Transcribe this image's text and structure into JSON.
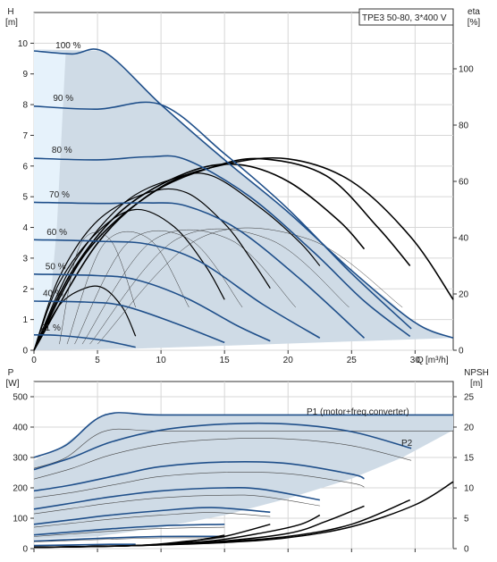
{
  "colors": {
    "region_fill": "#cfdbe6",
    "region_fill_light": "#e6f2fb",
    "curve_blue": "#1f4f8a",
    "eff_curve": "#000000",
    "grid": "#d7d7d7",
    "p2_label": "#2b5aa0"
  },
  "chart_data": [
    {
      "type": "line",
      "panel": "head",
      "title_box": "TPE3 50-80, 3*400 V",
      "ylabel_left": "H",
      "ylabel_left_unit": "[m]",
      "ylabel_right": "eta",
      "ylabel_right_unit": "[%]",
      "xlabel": "Q",
      "xlabel_unit": "[m³/h]",
      "xlim": [
        0,
        33
      ],
      "ylim": [
        0,
        11
      ],
      "eta_lim": [
        0,
        120
      ],
      "x_ticks": [
        "0",
        "5",
        "10",
        "15",
        "20",
        "25",
        "30"
      ],
      "y_ticks": [
        "0",
        "1",
        "2",
        "3",
        "4",
        "5",
        "6",
        "7",
        "8",
        "9",
        "10"
      ],
      "eta_ticks": [
        "0",
        "20",
        "40",
        "60",
        "80",
        "100"
      ],
      "speed_labels": [
        "100 %",
        "90 %",
        "80 %",
        "70 %",
        "60 %",
        "50 %",
        "40 %",
        "21 %"
      ],
      "region_outline": [
        [
          0,
          9.8
        ],
        [
          5.6,
          9.75
        ],
        [
          10,
          8.0
        ],
        [
          15,
          6.2
        ],
        [
          20,
          4.5
        ],
        [
          25,
          2.6
        ],
        [
          28,
          1.6
        ],
        [
          30,
          0.85
        ],
        [
          33,
          0.4
        ],
        [
          8,
          0.05
        ],
        [
          0,
          0
        ]
      ],
      "head_series": [
        {
          "speed": 100,
          "points": [
            [
              0,
              9.75
            ],
            [
              3,
              9.65
            ],
            [
              5.6,
              9.7
            ],
            [
              10,
              8.0
            ],
            [
              15,
              6.2
            ],
            [
              20,
              4.5
            ],
            [
              25,
              2.6
            ],
            [
              30,
              0.9
            ],
            [
              33,
              0.4
            ]
          ]
        },
        {
          "speed": 90,
          "points": [
            [
              0,
              7.95
            ],
            [
              5,
              7.85
            ],
            [
              10,
              8.0
            ],
            [
              15,
              6.4
            ],
            [
              20,
              4.6
            ],
            [
              25,
              2.5
            ],
            [
              29.7,
              0.7
            ]
          ]
        },
        {
          "speed": 80,
          "points": [
            [
              0,
              6.25
            ],
            [
              5,
              6.2
            ],
            [
              9,
              6.3
            ],
            [
              12,
              6.2
            ],
            [
              17,
              5.0
            ],
            [
              22,
              3.2
            ],
            [
              26,
              1.6
            ],
            [
              29.6,
              0.45
            ]
          ]
        },
        {
          "speed": 70,
          "points": [
            [
              0,
              4.82
            ],
            [
              5,
              4.78
            ],
            [
              9,
              4.8
            ],
            [
              12,
              4.7
            ],
            [
              16,
              3.95
            ],
            [
              21,
              2.3
            ],
            [
              26,
              0.4
            ]
          ]
        },
        {
          "speed": 60,
          "points": [
            [
              0,
              3.6
            ],
            [
              5,
              3.55
            ],
            [
              9,
              3.45
            ],
            [
              13,
              2.9
            ],
            [
              18,
              1.5
            ],
            [
              22.5,
              0.4
            ]
          ]
        },
        {
          "speed": 50,
          "points": [
            [
              0,
              2.48
            ],
            [
              5,
              2.43
            ],
            [
              8,
              2.3
            ],
            [
              12,
              1.7
            ],
            [
              16,
              0.8
            ],
            [
              18.6,
              0.3
            ]
          ]
        },
        {
          "speed": 40,
          "points": [
            [
              0,
              1.6
            ],
            [
              4,
              1.57
            ],
            [
              7,
              1.45
            ],
            [
              11,
              0.9
            ],
            [
              15,
              0.25
            ]
          ]
        },
        {
          "speed": 21,
          "points": [
            [
              0,
              0.5
            ],
            [
              2,
              0.48
            ],
            [
              5,
              0.35
            ],
            [
              8,
              0.1
            ]
          ]
        }
      ],
      "eta_series": [
        {
          "points": [
            [
              0,
              0
            ],
            [
              5,
              38
            ],
            [
              10,
              58
            ],
            [
              15,
              66
            ],
            [
              20,
              68
            ],
            [
              25,
              60
            ],
            [
              29.7,
              40
            ],
            [
              33,
              18
            ]
          ]
        },
        {
          "points": [
            [
              0,
              0
            ],
            [
              4,
              34
            ],
            [
              9,
              55
            ],
            [
              14,
              65
            ],
            [
              18,
              68
            ],
            [
              23,
              62
            ],
            [
              27,
              44
            ],
            [
              29.6,
              30
            ]
          ]
        },
        {
          "points": [
            [
              0,
              0
            ],
            [
              3,
              28
            ],
            [
              7,
              50
            ],
            [
              12,
              63
            ],
            [
              16,
              66
            ],
            [
              20,
              60
            ],
            [
              24,
              46
            ],
            [
              26,
              36
            ]
          ]
        },
        {
          "points": [
            [
              0,
              0
            ],
            [
              3,
              30
            ],
            [
              7,
              52
            ],
            [
              11,
              61
            ],
            [
              14,
              62
            ],
            [
              18,
              50
            ],
            [
              21,
              38
            ],
            [
              22.5,
              30
            ]
          ]
        },
        {
          "points": [
            [
              0,
              0
            ],
            [
              2,
              26
            ],
            [
              5,
              46
            ],
            [
              9,
              56
            ],
            [
              12,
              56
            ],
            [
              15,
              45
            ],
            [
              17,
              33
            ],
            [
              18.6,
              22
            ]
          ]
        },
        {
          "points": [
            [
              0,
              0
            ],
            [
              2,
              24
            ],
            [
              5,
              42
            ],
            [
              8,
              50
            ],
            [
              11,
              44
            ],
            [
              13.5,
              30
            ],
            [
              15,
              18
            ]
          ]
        },
        {
          "points": [
            [
              0,
              0
            ],
            [
              2,
              16
            ],
            [
              4,
              22
            ],
            [
              5.5,
              22
            ],
            [
              7,
              15
            ],
            [
              8,
              5
            ]
          ]
        }
      ]
    },
    {
      "type": "line",
      "panel": "power",
      "ylabel_left": "P",
      "ylabel_left_unit": "[W]",
      "ylabel_right": "NPSH",
      "ylabel_right_unit": "[m]",
      "xlim": [
        0,
        33
      ],
      "ylim": [
        0,
        550
      ],
      "npsh_lim": [
        0,
        27.5
      ],
      "y_ticks": [
        "0",
        "100",
        "200",
        "300",
        "400",
        "500"
      ],
      "npsh_ticks": [
        "0",
        "5",
        "10",
        "15",
        "20",
        "25"
      ],
      "annotation_p1": "P1 (motor+freq.converter)",
      "annotation_p2": "P2",
      "power_region_outline": [
        [
          0,
          290
        ],
        [
          2,
          330
        ],
        [
          5.6,
          445
        ],
        [
          15,
          440
        ],
        [
          20,
          440
        ],
        [
          25,
          440
        ],
        [
          33,
          440
        ],
        [
          33,
          390
        ],
        [
          29,
          300
        ],
        [
          25,
          230
        ],
        [
          20,
          165
        ],
        [
          15,
          110
        ],
        [
          10,
          70
        ],
        [
          5,
          40
        ],
        [
          0,
          30
        ]
      ],
      "power_series": [
        {
          "speed": 100,
          "points": [
            [
              0,
              300
            ],
            [
              2.5,
              340
            ],
            [
              5.6,
              440
            ],
            [
              10,
              440
            ],
            [
              20,
              440
            ],
            [
              25,
              440
            ],
            [
              33,
              440
            ]
          ]
        },
        {
          "speed": 90,
          "points": [
            [
              0,
              260
            ],
            [
              3,
              300
            ],
            [
              6,
              350
            ],
            [
              10,
              390
            ],
            [
              15,
              410
            ],
            [
              20,
              410
            ],
            [
              25,
              385
            ],
            [
              29.7,
              330
            ]
          ]
        },
        {
          "speed": 80,
          "points": [
            [
              0,
              190
            ],
            [
              3,
              210
            ],
            [
              7,
              245
            ],
            [
              10,
              270
            ],
            [
              15,
              285
            ],
            [
              20,
              280
            ],
            [
              25,
              245
            ],
            [
              26,
              230
            ]
          ]
        },
        {
          "speed": 70,
          "points": [
            [
              0,
              130
            ],
            [
              3,
              150
            ],
            [
              6,
              170
            ],
            [
              10,
              190
            ],
            [
              15,
              200
            ],
            [
              18,
              195
            ],
            [
              22.5,
              160
            ]
          ]
        },
        {
          "speed": 60,
          "points": [
            [
              0,
              80
            ],
            [
              3,
              95
            ],
            [
              6,
              110
            ],
            [
              10,
              125
            ],
            [
              14,
              135
            ],
            [
              18.6,
              120
            ]
          ]
        },
        {
          "speed": 50,
          "points": [
            [
              0,
              45
            ],
            [
              3,
              55
            ],
            [
              6,
              65
            ],
            [
              10,
              75
            ],
            [
              15,
              80
            ]
          ]
        },
        {
          "speed": 40,
          "points": [
            [
              0,
              25
            ],
            [
              3,
              30
            ],
            [
              6,
              35
            ],
            [
              10,
              40
            ],
            [
              15,
              40
            ]
          ]
        },
        {
          "speed": 21,
          "points": [
            [
              0,
              10
            ],
            [
              3,
              12
            ],
            [
              6,
              14
            ],
            [
              8,
              14
            ]
          ]
        }
      ],
      "npsh_series": [
        {
          "points": [
            [
              0,
              0.2
            ],
            [
              8,
              0.5
            ],
            [
              15,
              1.0
            ],
            [
              20,
              1.8
            ],
            [
              25,
              3.6
            ],
            [
              30,
              7.2
            ],
            [
              33,
              11.0
            ]
          ]
        },
        {
          "points": [
            [
              0,
              0.2
            ],
            [
              8,
              0.5
            ],
            [
              14,
              1.0
            ],
            [
              20,
              2.0
            ],
            [
              25,
              4.0
            ],
            [
              29.6,
              8.0
            ]
          ]
        },
        {
          "points": [
            [
              0,
              0.2
            ],
            [
              8,
              0.5
            ],
            [
              14,
              1.1
            ],
            [
              20,
              2.5
            ],
            [
              23,
              4.5
            ],
            [
              26,
              7.0
            ]
          ]
        },
        {
          "points": [
            [
              0,
              0.2
            ],
            [
              8,
              0.5
            ],
            [
              14,
              1.3
            ],
            [
              18,
              2.6
            ],
            [
              21,
              4.0
            ],
            [
              22.5,
              5.5
            ]
          ]
        },
        {
          "points": [
            [
              0,
              0.2
            ],
            [
              8,
              0.5
            ],
            [
              12,
              1.2
            ],
            [
              15,
              2.0
            ],
            [
              18.6,
              4.0
            ]
          ]
        },
        {
          "points": [
            [
              0,
              0.2
            ],
            [
              8,
              0.5
            ],
            [
              12,
              1.1
            ],
            [
              15,
              2.2
            ]
          ]
        }
      ]
    }
  ]
}
